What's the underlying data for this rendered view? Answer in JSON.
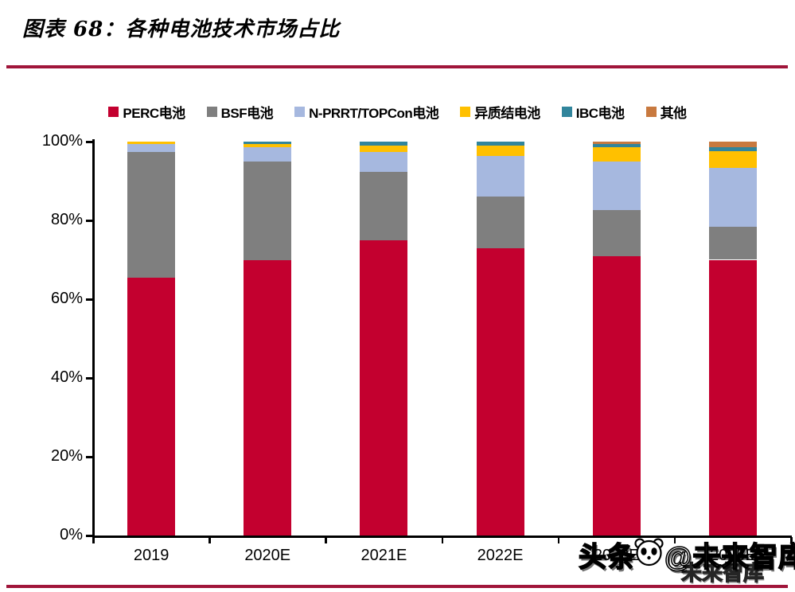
{
  "title": "图表 68：各种电池技术市场占比",
  "rules": {
    "color": "#A0153A"
  },
  "watermark": {
    "text_left": "头条",
    "text_right": "@未来智库",
    "ghost": "未来智库"
  },
  "chart_data": {
    "type": "bar",
    "stacked": true,
    "title": "各种电池技术市场占比",
    "xlabel": "",
    "ylabel": "",
    "ylim": [
      0,
      100
    ],
    "grid": false,
    "legend_position": "top",
    "yticks": [
      "0%",
      "20%",
      "40%",
      "60%",
      "80%",
      "100%"
    ],
    "categories": [
      "2019",
      "2020E",
      "2021E",
      "2022E",
      "2023E",
      "2025E"
    ],
    "series": [
      {
        "name": "PERC电池",
        "color": "#C3002F",
        "values": [
          65.5,
          70.0,
          75.0,
          73.0,
          71.0,
          70.0
        ]
      },
      {
        "name": "BSF电池",
        "color": "#7F7F7F",
        "values": [
          31.9,
          25.0,
          17.3,
          13.0,
          11.6,
          8.3
        ]
      },
      {
        "name": "N-PRRT/TOPCon电池",
        "color": "#A6B8DF",
        "values": [
          2.0,
          3.5,
          5.1,
          10.4,
          12.4,
          15.0
        ]
      },
      {
        "name": "异质结电池",
        "color": "#FFC000",
        "values": [
          0.6,
          0.8,
          1.6,
          2.6,
          3.5,
          4.2
        ]
      },
      {
        "name": "IBC电池",
        "color": "#31859C",
        "values": [
          0.0,
          0.7,
          1.0,
          1.0,
          0.8,
          1.0
        ]
      },
      {
        "name": "其他",
        "color": "#C8793F",
        "values": [
          0.0,
          0.0,
          0.0,
          0.0,
          0.7,
          1.5
        ]
      }
    ]
  }
}
